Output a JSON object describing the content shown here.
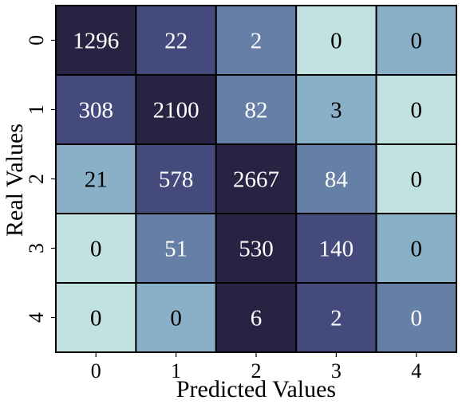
{
  "chart_data": {
    "type": "heatmap",
    "xlabel": "Predicted Values",
    "ylabel": "Real Values",
    "x_categories": [
      "0",
      "1",
      "2",
      "3",
      "4"
    ],
    "y_categories": [
      "0",
      "1",
      "2",
      "3",
      "4"
    ],
    "values": [
      [
        1296,
        22,
        2,
        0,
        0
      ],
      [
        308,
        2100,
        82,
        3,
        0
      ],
      [
        21,
        578,
        2667,
        84,
        0
      ],
      [
        0,
        51,
        530,
        140,
        0
      ],
      [
        0,
        0,
        6,
        2,
        0
      ]
    ],
    "colorbar": false,
    "grid": true,
    "cell_colors": [
      [
        "#282342",
        "#454a7c",
        "#657fa6",
        "#c2e2e2",
        "#89b0c6"
      ],
      [
        "#454a7c",
        "#282342",
        "#657fa6",
        "#89b0c6",
        "#c2e2e2"
      ],
      [
        "#89b0c6",
        "#454a7c",
        "#282342",
        "#657fa6",
        "#c2e2e2"
      ],
      [
        "#c2e2e2",
        "#657fa6",
        "#282342",
        "#454a7c",
        "#89b0c6"
      ],
      [
        "#c2e2e2",
        "#89b0c6",
        "#282342",
        "#454a7c",
        "#657fa6"
      ]
    ],
    "text_colors": [
      [
        "#ffffff",
        "#ffffff",
        "#ffffff",
        "#000000",
        "#000000"
      ],
      [
        "#ffffff",
        "#ffffff",
        "#ffffff",
        "#000000",
        "#000000"
      ],
      [
        "#000000",
        "#ffffff",
        "#ffffff",
        "#ffffff",
        "#000000"
      ],
      [
        "#000000",
        "#ffffff",
        "#ffffff",
        "#ffffff",
        "#000000"
      ],
      [
        "#000000",
        "#000000",
        "#ffffff",
        "#ffffff",
        "#ffffff"
      ]
    ]
  }
}
